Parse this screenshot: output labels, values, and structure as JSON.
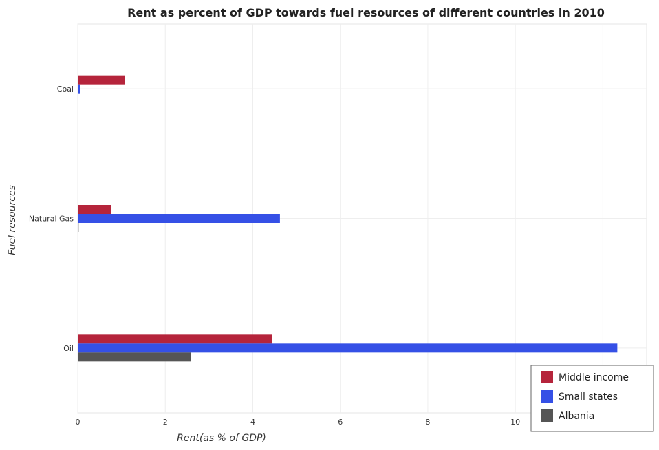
{
  "chart_data": {
    "type": "bar",
    "orientation": "horizontal",
    "title": "Rent as percent of GDP towards fuel resources of different countries in 2010",
    "xlabel": "Rent(as % of GDP)",
    "ylabel": "Fuel resources",
    "categories": [
      "Coal",
      "Natural Gas",
      "Oil"
    ],
    "xlim": [
      0,
      13
    ],
    "xticks": [
      0,
      2,
      4,
      6,
      8,
      10,
      12
    ],
    "grid": true,
    "legend_position": "bottom-right",
    "series": [
      {
        "name": "Middle income",
        "color": "#b5243b",
        "values": [
          1.07,
          0.77,
          4.44
        ]
      },
      {
        "name": "Small states",
        "color": "#3550e6",
        "values": [
          0.06,
          4.62,
          12.33
        ]
      },
      {
        "name": "Albania",
        "color": "#555555",
        "values": [
          0.0,
          0.02,
          2.58
        ]
      }
    ]
  }
}
